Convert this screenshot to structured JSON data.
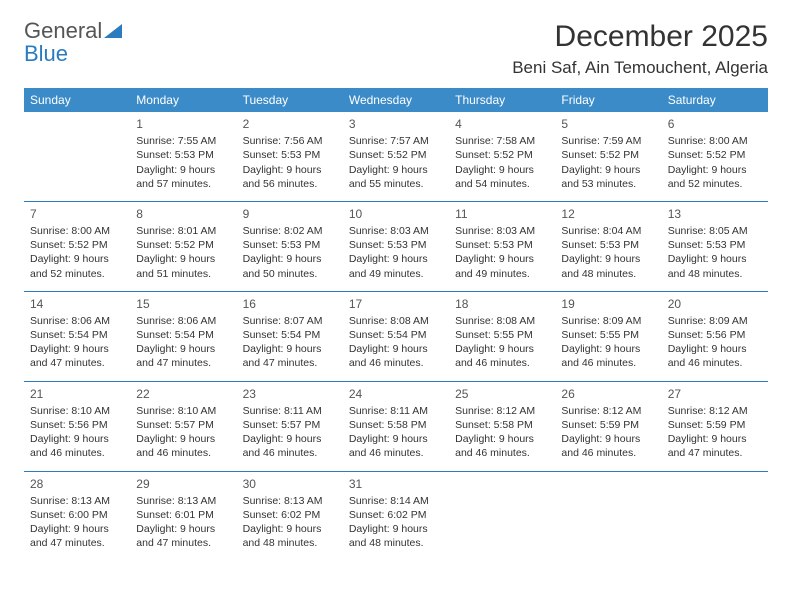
{
  "brand": {
    "part1": "General",
    "part2": "Blue"
  },
  "title": "December 2025",
  "location": "Beni Saf, Ain Temouchent, Algeria",
  "colors": {
    "header_bg": "#3b8bc9",
    "header_text": "#ffffff",
    "row_border": "#2b7bbf",
    "logo_gray": "#555555",
    "logo_blue": "#2b7bbf"
  },
  "weekdays": [
    "Sunday",
    "Monday",
    "Tuesday",
    "Wednesday",
    "Thursday",
    "Friday",
    "Saturday"
  ],
  "weeks": [
    [
      null,
      {
        "n": "1",
        "sr": "7:55 AM",
        "ss": "5:53 PM",
        "dl": "9 hours and 57 minutes."
      },
      {
        "n": "2",
        "sr": "7:56 AM",
        "ss": "5:53 PM",
        "dl": "9 hours and 56 minutes."
      },
      {
        "n": "3",
        "sr": "7:57 AM",
        "ss": "5:52 PM",
        "dl": "9 hours and 55 minutes."
      },
      {
        "n": "4",
        "sr": "7:58 AM",
        "ss": "5:52 PM",
        "dl": "9 hours and 54 minutes."
      },
      {
        "n": "5",
        "sr": "7:59 AM",
        "ss": "5:52 PM",
        "dl": "9 hours and 53 minutes."
      },
      {
        "n": "6",
        "sr": "8:00 AM",
        "ss": "5:52 PM",
        "dl": "9 hours and 52 minutes."
      }
    ],
    [
      {
        "n": "7",
        "sr": "8:00 AM",
        "ss": "5:52 PM",
        "dl": "9 hours and 52 minutes."
      },
      {
        "n": "8",
        "sr": "8:01 AM",
        "ss": "5:52 PM",
        "dl": "9 hours and 51 minutes."
      },
      {
        "n": "9",
        "sr": "8:02 AM",
        "ss": "5:53 PM",
        "dl": "9 hours and 50 minutes."
      },
      {
        "n": "10",
        "sr": "8:03 AM",
        "ss": "5:53 PM",
        "dl": "9 hours and 49 minutes."
      },
      {
        "n": "11",
        "sr": "8:03 AM",
        "ss": "5:53 PM",
        "dl": "9 hours and 49 minutes."
      },
      {
        "n": "12",
        "sr": "8:04 AM",
        "ss": "5:53 PM",
        "dl": "9 hours and 48 minutes."
      },
      {
        "n": "13",
        "sr": "8:05 AM",
        "ss": "5:53 PM",
        "dl": "9 hours and 48 minutes."
      }
    ],
    [
      {
        "n": "14",
        "sr": "8:06 AM",
        "ss": "5:54 PM",
        "dl": "9 hours and 47 minutes."
      },
      {
        "n": "15",
        "sr": "8:06 AM",
        "ss": "5:54 PM",
        "dl": "9 hours and 47 minutes."
      },
      {
        "n": "16",
        "sr": "8:07 AM",
        "ss": "5:54 PM",
        "dl": "9 hours and 47 minutes."
      },
      {
        "n": "17",
        "sr": "8:08 AM",
        "ss": "5:54 PM",
        "dl": "9 hours and 46 minutes."
      },
      {
        "n": "18",
        "sr": "8:08 AM",
        "ss": "5:55 PM",
        "dl": "9 hours and 46 minutes."
      },
      {
        "n": "19",
        "sr": "8:09 AM",
        "ss": "5:55 PM",
        "dl": "9 hours and 46 minutes."
      },
      {
        "n": "20",
        "sr": "8:09 AM",
        "ss": "5:56 PM",
        "dl": "9 hours and 46 minutes."
      }
    ],
    [
      {
        "n": "21",
        "sr": "8:10 AM",
        "ss": "5:56 PM",
        "dl": "9 hours and 46 minutes."
      },
      {
        "n": "22",
        "sr": "8:10 AM",
        "ss": "5:57 PM",
        "dl": "9 hours and 46 minutes."
      },
      {
        "n": "23",
        "sr": "8:11 AM",
        "ss": "5:57 PM",
        "dl": "9 hours and 46 minutes."
      },
      {
        "n": "24",
        "sr": "8:11 AM",
        "ss": "5:58 PM",
        "dl": "9 hours and 46 minutes."
      },
      {
        "n": "25",
        "sr": "8:12 AM",
        "ss": "5:58 PM",
        "dl": "9 hours and 46 minutes."
      },
      {
        "n": "26",
        "sr": "8:12 AM",
        "ss": "5:59 PM",
        "dl": "9 hours and 46 minutes."
      },
      {
        "n": "27",
        "sr": "8:12 AM",
        "ss": "5:59 PM",
        "dl": "9 hours and 47 minutes."
      }
    ],
    [
      {
        "n": "28",
        "sr": "8:13 AM",
        "ss": "6:00 PM",
        "dl": "9 hours and 47 minutes."
      },
      {
        "n": "29",
        "sr": "8:13 AM",
        "ss": "6:01 PM",
        "dl": "9 hours and 47 minutes."
      },
      {
        "n": "30",
        "sr": "8:13 AM",
        "ss": "6:02 PM",
        "dl": "9 hours and 48 minutes."
      },
      {
        "n": "31",
        "sr": "8:14 AM",
        "ss": "6:02 PM",
        "dl": "9 hours and 48 minutes."
      },
      null,
      null,
      null
    ]
  ],
  "labels": {
    "sunrise": "Sunrise:",
    "sunset": "Sunset:",
    "daylight": "Daylight:"
  }
}
